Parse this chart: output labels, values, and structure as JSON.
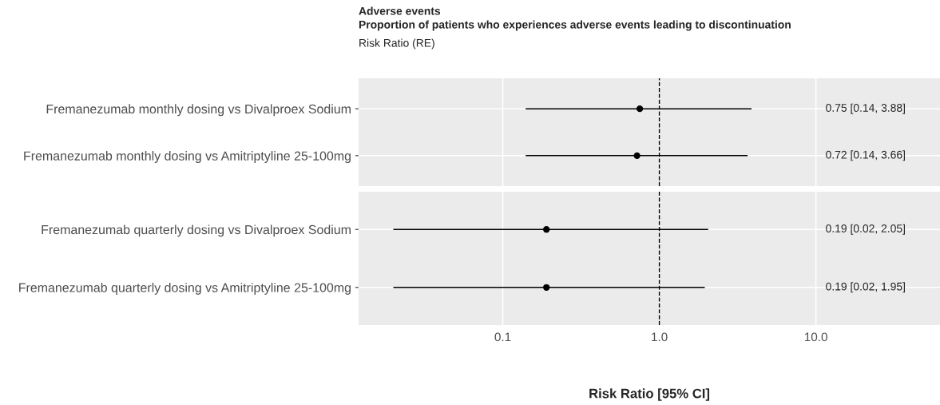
{
  "chart_data": [
    {
      "type": "scatter",
      "orientation": "horizontal",
      "title": "Adverse events",
      "subtitle": "Proportion of patients who experiences adverse events leading to discontinuation",
      "annotations": [
        "Risk Ratio (RE)",
        "0.75 [0.14, 3.88]",
        "0.72 [0.14, 3.66]"
      ],
      "categories": [
        "Fremanezumab monthly dosing vs Divalproex Sodium",
        "Fremanezumab monthly dosing vs Amitriptyline 25-100mg"
      ],
      "values": [
        0.75,
        0.72
      ],
      "errors": [
        [
          0.14,
          3.88
        ],
        [
          0.14,
          3.66
        ]
      ],
      "color": "#000000",
      "marker": "circle",
      "log": "x",
      "xlim": [
        0.012,
        62
      ],
      "xticks": [
        {
          "value": 0.1,
          "label": null
        },
        {
          "value": 1,
          "label": null
        },
        {
          "value": 10,
          "label": null
        }
      ],
      "ref_lines": [
        {
          "axis": "x",
          "value": 1,
          "line_style": "dashed",
          "color": "#000000"
        }
      ],
      "grid": true,
      "tick_labels": "y"
    },
    {
      "type": "scatter",
      "orientation": "horizontal",
      "xlabel": "Risk Ratio [95% CI]",
      "annotations": [
        "0.19 [0.02, 2.05]",
        "0.19 [0.02, 1.95]"
      ],
      "categories": [
        "Fremanezumab quarterly dosing vs Divalproex Sodium",
        "Fremanezumab quarterly dosing vs Amitriptyline 25-100mg"
      ],
      "values": [
        0.19,
        0.19
      ],
      "errors": [
        [
          0.02,
          2.05
        ],
        [
          0.02,
          1.95
        ]
      ],
      "color": "#000000",
      "marker": "circle",
      "log": "x",
      "xlim": [
        0.012,
        62
      ],
      "xticks": [
        {
          "value": 0.1,
          "label": "0.1"
        },
        {
          "value": 1,
          "label": "1.0"
        },
        {
          "value": 10,
          "label": "10.0"
        }
      ],
      "ref_lines": [
        {
          "axis": "x",
          "value": 1,
          "line_style": "dashed",
          "color": "#000000"
        }
      ],
      "grid": true
    }
  ]
}
